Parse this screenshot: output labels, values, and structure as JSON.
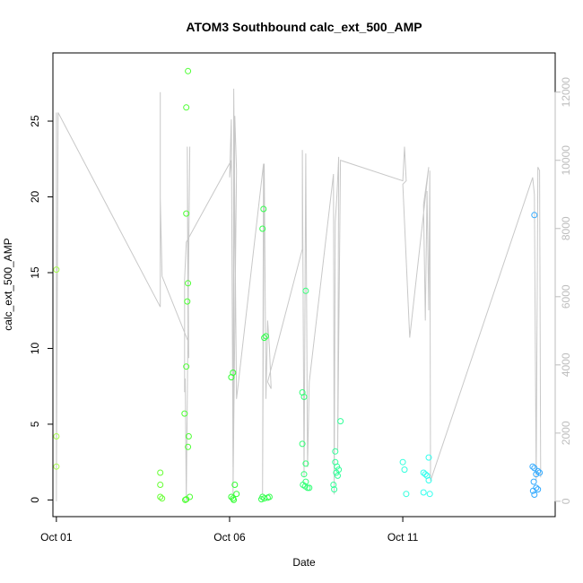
{
  "chart_data": {
    "type": "scatter",
    "title": "ATOM3 Southbound calc_ext_500_AMP",
    "xlabel": "Date",
    "ylabel": "calc_ext_500_AMP",
    "x_ticks": [
      "Oct 01",
      "Oct 06",
      "Oct 11"
    ],
    "x_tick_days": [
      1,
      6,
      11
    ],
    "xlim": [
      0.9,
      15.4
    ],
    "ylim": [
      -1.1,
      29.5
    ],
    "y_ticks": [
      0,
      5,
      10,
      15,
      20,
      25
    ],
    "y2lim": [
      -450,
      13150
    ],
    "y2_ticks": [
      0,
      2000,
      4000,
      6000,
      8000,
      10000,
      12000
    ],
    "grid": false,
    "legend": "none",
    "point_color_gradient": [
      "#9aff5a",
      "#2fff3a",
      "#33ffaa",
      "#33ffff",
      "#33aaff"
    ],
    "line_color": "#c8c8c8",
    "points": [
      {
        "x": 1.0,
        "y": 15.2,
        "c": "#a6ff4d"
      },
      {
        "x": 1.0,
        "y": 4.2,
        "c": "#a6ff4d"
      },
      {
        "x": 1.0,
        "y": 2.2,
        "c": "#a6ff4d"
      },
      {
        "x": 4.0,
        "y": 1.8,
        "c": "#66ff33"
      },
      {
        "x": 4.0,
        "y": 1.0,
        "c": "#66ff33"
      },
      {
        "x": 4.0,
        "y": 0.2,
        "c": "#66ff33"
      },
      {
        "x": 4.05,
        "y": 0.1,
        "c": "#66ff33"
      },
      {
        "x": 4.8,
        "y": 28.3,
        "c": "#4dff33"
      },
      {
        "x": 4.75,
        "y": 25.9,
        "c": "#4dff33"
      },
      {
        "x": 4.75,
        "y": 18.9,
        "c": "#4dff33"
      },
      {
        "x": 4.8,
        "y": 14.3,
        "c": "#4dff33"
      },
      {
        "x": 4.78,
        "y": 13.1,
        "c": "#4dff33"
      },
      {
        "x": 4.75,
        "y": 8.8,
        "c": "#4dff33"
      },
      {
        "x": 4.7,
        "y": 5.7,
        "c": "#4dff33"
      },
      {
        "x": 4.82,
        "y": 4.2,
        "c": "#4dff33"
      },
      {
        "x": 4.8,
        "y": 3.5,
        "c": "#4dff33"
      },
      {
        "x": 4.85,
        "y": 0.2,
        "c": "#4dff33"
      },
      {
        "x": 4.75,
        "y": 0.05,
        "c": "#4dff33"
      },
      {
        "x": 4.72,
        "y": 0.0,
        "c": "#4dff33"
      },
      {
        "x": 6.1,
        "y": 8.4,
        "c": "#33ff33"
      },
      {
        "x": 6.05,
        "y": 8.1,
        "c": "#33ff33"
      },
      {
        "x": 6.15,
        "y": 1.0,
        "c": "#33ff33"
      },
      {
        "x": 6.2,
        "y": 0.4,
        "c": "#33ff33"
      },
      {
        "x": 6.05,
        "y": 0.2,
        "c": "#33ff33"
      },
      {
        "x": 6.1,
        "y": 0.1,
        "c": "#33ff33"
      },
      {
        "x": 6.12,
        "y": 0.0,
        "c": "#33ff33"
      },
      {
        "x": 6.98,
        "y": 19.2,
        "c": "#33ff4d"
      },
      {
        "x": 6.95,
        "y": 17.9,
        "c": "#33ff4d"
      },
      {
        "x": 7.05,
        "y": 10.8,
        "c": "#33ff4d"
      },
      {
        "x": 7.0,
        "y": 10.7,
        "c": "#33ff4d"
      },
      {
        "x": 6.95,
        "y": 0.2,
        "c": "#33ff4d"
      },
      {
        "x": 7.0,
        "y": 0.1,
        "c": "#33ff4d"
      },
      {
        "x": 7.1,
        "y": 0.15,
        "c": "#33ff4d"
      },
      {
        "x": 7.15,
        "y": 0.2,
        "c": "#33ff4d"
      },
      {
        "x": 6.92,
        "y": 0.05,
        "c": "#33ff4d"
      },
      {
        "x": 8.2,
        "y": 13.8,
        "c": "#33ff77"
      },
      {
        "x": 8.1,
        "y": 7.1,
        "c": "#33ff77"
      },
      {
        "x": 8.15,
        "y": 6.8,
        "c": "#33ff77"
      },
      {
        "x": 8.1,
        "y": 3.7,
        "c": "#33ff77"
      },
      {
        "x": 8.2,
        "y": 2.4,
        "c": "#33ff77"
      },
      {
        "x": 8.15,
        "y": 1.7,
        "c": "#33ff77"
      },
      {
        "x": 8.2,
        "y": 1.2,
        "c": "#33ff77"
      },
      {
        "x": 8.12,
        "y": 1.0,
        "c": "#33ff77"
      },
      {
        "x": 8.25,
        "y": 0.8,
        "c": "#33ff77"
      },
      {
        "x": 8.18,
        "y": 0.9,
        "c": "#33ff77"
      },
      {
        "x": 8.3,
        "y": 0.8,
        "c": "#33ff77"
      },
      {
        "x": 9.2,
        "y": 5.2,
        "c": "#33ff99"
      },
      {
        "x": 9.05,
        "y": 3.2,
        "c": "#33ff99"
      },
      {
        "x": 9.05,
        "y": 2.5,
        "c": "#33ff99"
      },
      {
        "x": 9.1,
        "y": 2.2,
        "c": "#33ff99"
      },
      {
        "x": 9.15,
        "y": 2.0,
        "c": "#33ff99"
      },
      {
        "x": 9.08,
        "y": 1.8,
        "c": "#33ff99"
      },
      {
        "x": 9.12,
        "y": 1.6,
        "c": "#33ff99"
      },
      {
        "x": 9.0,
        "y": 1.0,
        "c": "#33ff99"
      },
      {
        "x": 9.02,
        "y": 0.7,
        "c": "#33ff99"
      },
      {
        "x": 11.0,
        "y": 2.5,
        "c": "#33ffdd"
      },
      {
        "x": 11.05,
        "y": 2.0,
        "c": "#33ffdd"
      },
      {
        "x": 11.1,
        "y": 0.4,
        "c": "#33ffdd"
      },
      {
        "x": 11.75,
        "y": 2.8,
        "c": "#33ffee"
      },
      {
        "x": 11.6,
        "y": 1.8,
        "c": "#33ffee"
      },
      {
        "x": 11.65,
        "y": 1.7,
        "c": "#33ffee"
      },
      {
        "x": 11.7,
        "y": 1.6,
        "c": "#33ffee"
      },
      {
        "x": 11.75,
        "y": 1.3,
        "c": "#33ffee"
      },
      {
        "x": 11.6,
        "y": 0.5,
        "c": "#33ffee"
      },
      {
        "x": 11.78,
        "y": 0.4,
        "c": "#33ffee"
      },
      {
        "x": 14.8,
        "y": 18.8,
        "c": "#33aaff"
      },
      {
        "x": 14.75,
        "y": 2.2,
        "c": "#33aaff"
      },
      {
        "x": 14.8,
        "y": 2.1,
        "c": "#33aaff"
      },
      {
        "x": 14.9,
        "y": 1.9,
        "c": "#33aaff"
      },
      {
        "x": 14.85,
        "y": 1.7,
        "c": "#33aaff"
      },
      {
        "x": 14.95,
        "y": 1.8,
        "c": "#33aaff"
      },
      {
        "x": 14.78,
        "y": 1.2,
        "c": "#33aaff"
      },
      {
        "x": 14.85,
        "y": 0.8,
        "c": "#33aaff"
      },
      {
        "x": 14.9,
        "y": 0.7,
        "c": "#33aaff"
      },
      {
        "x": 14.8,
        "y": 0.35,
        "c": "#33aaff"
      },
      {
        "x": 14.76,
        "y": 0.6,
        "c": "#33aaff"
      }
    ],
    "line_series_y2": [
      [
        1.0,
        0
      ],
      [
        1.0,
        6800
      ],
      [
        1.0,
        11400
      ],
      [
        1.0,
        300
      ],
      [
        1.05,
        11400
      ],
      [
        4.0,
        5700
      ],
      [
        4.0,
        12000
      ],
      [
        4.0,
        8900
      ],
      [
        4.05,
        6600
      ],
      [
        4.8,
        4700
      ],
      [
        4.82,
        4400
      ],
      [
        4.82,
        4200
      ],
      [
        4.78,
        10400
      ],
      [
        4.8,
        5000
      ],
      [
        4.85,
        10400
      ],
      [
        4.75,
        0
      ],
      [
        4.72,
        3600
      ],
      [
        4.7,
        3200
      ],
      [
        4.7,
        6500
      ],
      [
        4.75,
        7600
      ],
      [
        6.05,
        10000
      ],
      [
        6.0,
        9500
      ],
      [
        6.05,
        11200
      ],
      [
        6.1,
        1000
      ],
      [
        6.15,
        11300
      ],
      [
        6.2,
        9700
      ],
      [
        6.1,
        200
      ],
      [
        6.12,
        12100
      ],
      [
        6.2,
        3000
      ],
      [
        6.98,
        9900
      ],
      [
        6.95,
        200
      ],
      [
        7.0,
        9900
      ],
      [
        7.05,
        3000
      ],
      [
        7.1,
        5300
      ],
      [
        7.15,
        4500
      ],
      [
        7.2,
        3300
      ],
      [
        7.1,
        3500
      ],
      [
        8.1,
        7400
      ],
      [
        8.1,
        10300
      ],
      [
        8.15,
        700
      ],
      [
        8.2,
        10200
      ],
      [
        8.25,
        1000
      ],
      [
        8.3,
        3500
      ],
      [
        9.0,
        9600
      ],
      [
        9.02,
        200
      ],
      [
        9.05,
        8200
      ],
      [
        9.1,
        9000
      ],
      [
        9.15,
        10100
      ],
      [
        9.12,
        1500
      ],
      [
        9.2,
        10000
      ],
      [
        11.0,
        9400
      ],
      [
        11.05,
        10400
      ],
      [
        11.1,
        9400
      ],
      [
        11.0,
        9300
      ],
      [
        11.2,
        4800
      ],
      [
        11.75,
        9800
      ],
      [
        11.6,
        8700
      ],
      [
        11.65,
        5300
      ],
      [
        11.7,
        9100
      ],
      [
        11.75,
        5600
      ],
      [
        11.78,
        9700
      ],
      [
        11.8,
        600
      ],
      [
        14.75,
        9500
      ],
      [
        14.8,
        9000
      ],
      [
        14.85,
        600
      ],
      [
        14.9,
        9800
      ],
      [
        14.95,
        9700
      ],
      [
        14.98,
        700
      ]
    ]
  }
}
